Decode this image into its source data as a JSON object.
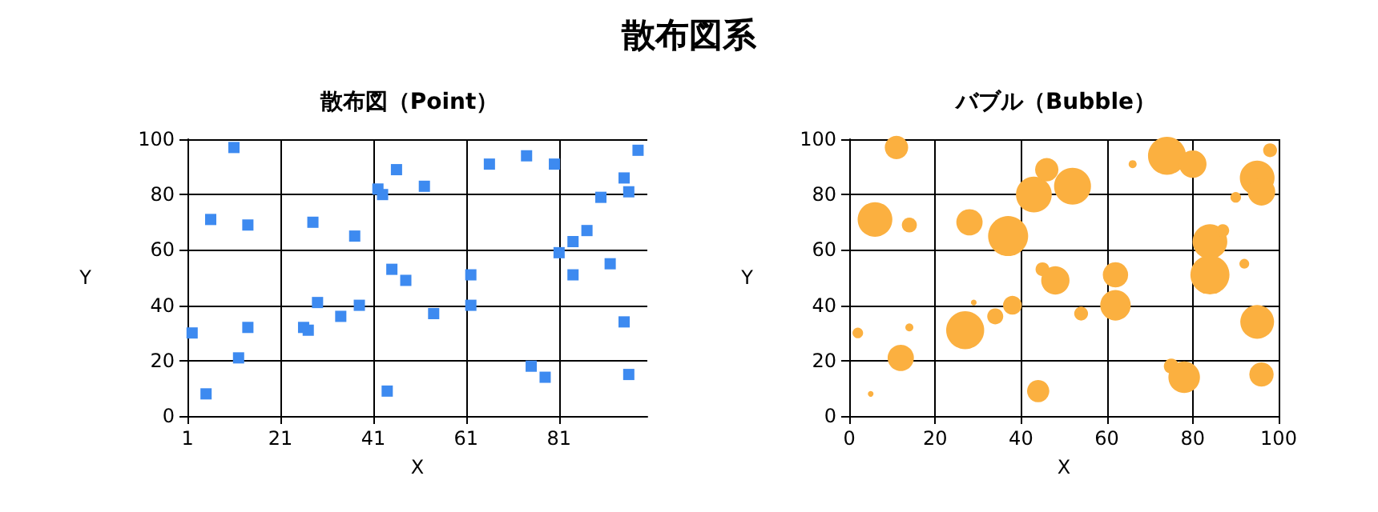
{
  "chart_data": [
    {
      "type": "scatter",
      "title": "散布図系",
      "subtitle": "散布図（Point）",
      "xlabel": "X",
      "ylabel": "Y",
      "xlim": [
        1,
        100
      ],
      "xticks": [
        1,
        21,
        41,
        61,
        81
      ],
      "ylim": [
        0,
        100
      ],
      "yticks": [
        0,
        20,
        40,
        60,
        80,
        100
      ],
      "grid": true,
      "marker": "square",
      "x": [
        2,
        5,
        6,
        11,
        12,
        14,
        14,
        26,
        27,
        28,
        29,
        34,
        37,
        38,
        42,
        43,
        44,
        45,
        46,
        48,
        52,
        54,
        62,
        62,
        66,
        74,
        75,
        78,
        80,
        81,
        84,
        84,
        87,
        90,
        92,
        95,
        95,
        96,
        96,
        98
      ],
      "series": [
        {
          "color": "#3d8af0",
          "values": [
            30,
            8,
            71,
            97,
            21,
            69,
            32,
            32,
            31,
            70,
            41,
            36,
            65,
            40,
            82,
            80,
            9,
            53,
            89,
            49,
            83,
            37,
            51,
            40,
            91,
            94,
            18,
            14,
            91,
            59,
            63,
            51,
            67,
            79,
            55,
            86,
            34,
            81,
            15,
            96
          ]
        }
      ]
    },
    {
      "type": "bubble",
      "subtitle": "バブル（Bubble）",
      "xlabel": "X",
      "ylabel": "Y",
      "xlim": [
        0,
        100
      ],
      "xticks": [
        0,
        20,
        40,
        60,
        80,
        100
      ],
      "ylim": [
        0,
        100
      ],
      "yticks": [
        0,
        20,
        40,
        60,
        80,
        100
      ],
      "grid": true,
      "marker": "circle",
      "x": [
        2,
        5,
        6,
        11,
        12,
        14,
        14,
        27,
        28,
        29,
        34,
        37,
        38,
        43,
        44,
        45,
        46,
        48,
        52,
        54,
        62,
        62,
        66,
        74,
        75,
        78,
        80,
        84,
        84,
        87,
        90,
        92,
        95,
        95,
        96,
        96,
        98
      ],
      "series": [
        {
          "color": "#fbb040",
          "values": [
            30,
            8,
            71,
            97,
            21,
            69,
            32,
            31,
            70,
            41,
            36,
            65,
            40,
            80,
            9,
            53,
            89,
            49,
            83,
            37,
            51,
            40,
            91,
            94,
            18,
            14,
            91,
            63,
            51,
            67,
            79,
            55,
            86,
            34,
            81,
            15,
            96
          ],
          "sizes": [
            0.07,
            0.02,
            0.75,
            0.34,
            0.43,
            0.14,
            0.04,
            0.9,
            0.43,
            0.02,
            0.16,
            1,
            0.22,
            0.8,
            0.31,
            0.12,
            0.34,
            0.5,
            0.85,
            0.12,
            0.4,
            0.58,
            0.04,
            0.9,
            0.14,
            0.62,
            0.47,
            0.75,
            0.95,
            0.1,
            0.07,
            0.06,
            0.75,
            0.71,
            0.47,
            0.37,
            0.12
          ]
        }
      ]
    }
  ]
}
